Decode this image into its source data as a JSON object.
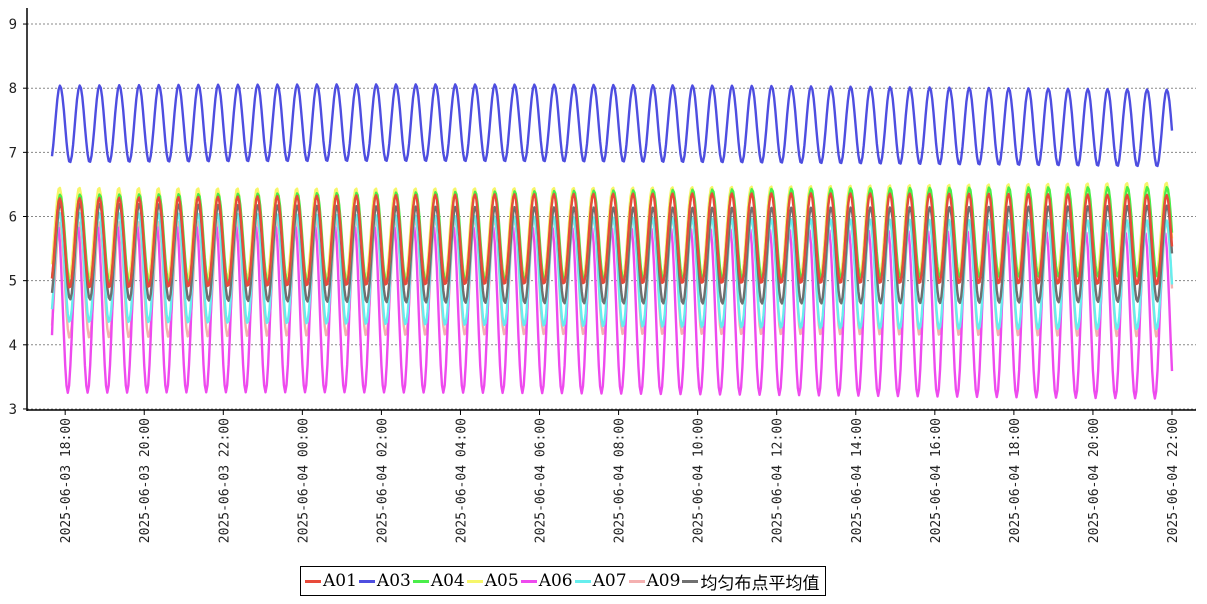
{
  "chart_data": {
    "type": "line",
    "title": "",
    "xlabel": "",
    "ylabel": "",
    "x_start": "2025-06-03 17:40",
    "x_end": "2025-06-04 22:00",
    "x_ticks": [
      "2025-06-03 18:00",
      "2025-06-03 20:00",
      "2025-06-03 22:00",
      "2025-06-04 00:00",
      "2025-06-04 02:00",
      "2025-06-04 04:00",
      "2025-06-04 06:00",
      "2025-06-04 08:00",
      "2025-06-04 10:00",
      "2025-06-04 12:00",
      "2025-06-04 14:00",
      "2025-06-04 16:00",
      "2025-06-04 18:00",
      "2025-06-04 20:00",
      "2025-06-04 22:00"
    ],
    "y_ticks": [
      "3",
      "4",
      "5",
      "6",
      "7",
      "8",
      "9"
    ],
    "ylim": [
      2.75,
      9.25
    ],
    "grid": true,
    "legend_position": "bottom-center",
    "period_minutes": 30,
    "series": [
      {
        "name": "A01",
        "color": "#e84a3a",
        "min": 4.9,
        "max": 6.3,
        "start": 5.05
      },
      {
        "name": "A03",
        "color": "#4e4ee0",
        "min": 6.8,
        "max": 8.0,
        "start": 6.9
      },
      {
        "name": "A04",
        "color": "#4aee4a",
        "min": 5.0,
        "max": 6.4,
        "start": 5.1
      },
      {
        "name": "A05",
        "color": "#f6f66a",
        "min": 5.1,
        "max": 6.5,
        "start": 5.3
      },
      {
        "name": "A06",
        "color": "#ee4aee",
        "min": 3.2,
        "max": 5.8,
        "start": 4.1
      },
      {
        "name": "A07",
        "color": "#66eeee",
        "min": 4.3,
        "max": 6.0,
        "start": 4.5
      },
      {
        "name": "A09",
        "color": "#f4b0b0",
        "min": 4.1,
        "max": 5.9,
        "start": 4.3
      },
      {
        "name": "均匀布点平均值",
        "color": "#707070",
        "min": 4.7,
        "max": 6.2,
        "start": 4.8
      }
    ],
    "draw_order": [
      "A09",
      "A06",
      "A07",
      "均匀布点平均值",
      "A05",
      "A04",
      "A01",
      "A03"
    ]
  }
}
